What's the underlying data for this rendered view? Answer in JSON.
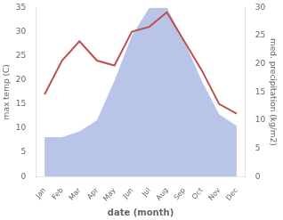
{
  "chart_data": {
    "type": "line",
    "xlabel": "date (month)",
    "ylabel": "max temp (C)",
    "y2label": "med. precipitation (kg/m2)",
    "categories": [
      "Jan",
      "Feb",
      "Mar",
      "Apr",
      "May",
      "Jun",
      "Jul",
      "Aug",
      "Sep",
      "Oct",
      "Nov",
      "Dec"
    ],
    "series": [
      {
        "type": "area",
        "axis": "y2",
        "color": "#b8c4e8",
        "values": [
          7,
          7,
          8,
          10,
          17,
          25,
          30,
          30,
          24,
          17,
          11,
          9
        ]
      },
      {
        "type": "line",
        "color": "#c0504d",
        "values": [
          17,
          24,
          28,
          24,
          23,
          30,
          31,
          34,
          28,
          22,
          15,
          13
        ]
      }
    ],
    "ylim": [
      0,
      35
    ],
    "yticks": [
      0,
      5,
      10,
      15,
      20,
      25,
      30,
      35
    ],
    "y2lim": [
      0,
      30
    ],
    "y2ticks": [
      0,
      5,
      10,
      15,
      20,
      25,
      30
    ],
    "grid": false
  }
}
